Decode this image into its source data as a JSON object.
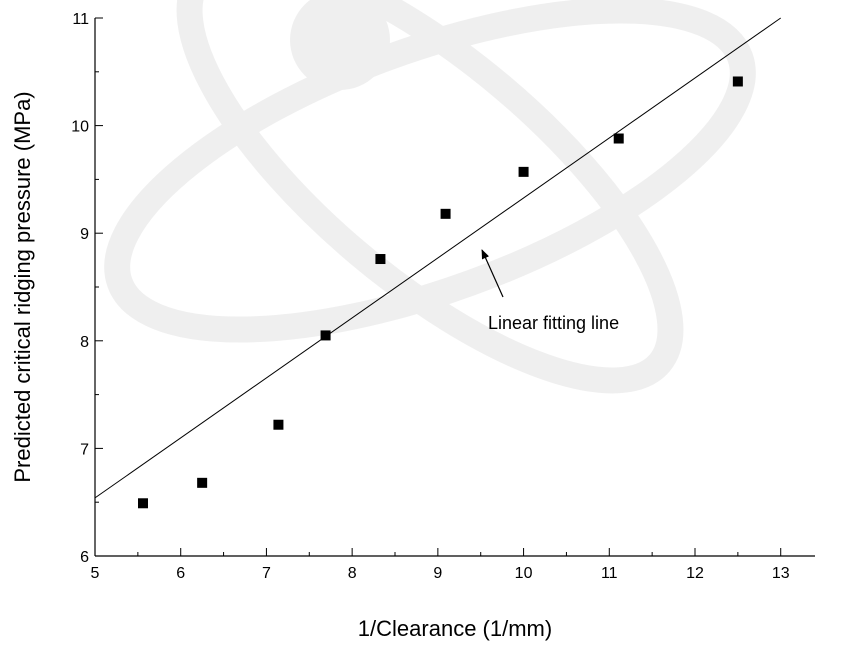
{
  "chart_data": {
    "type": "scatter",
    "x_label": "1/Clearance (1/mm)",
    "y_label": "Predicted critical ridging pressure (MPa)",
    "annotation": "Linear fitting line",
    "x": [
      5.56,
      6.25,
      7.14,
      7.69,
      8.33,
      9.09,
      10,
      11.11,
      12.5
    ],
    "values": [
      6.49,
      6.68,
      7.22,
      8.05,
      8.76,
      9.18,
      9.57,
      9.88,
      10.41
    ],
    "color": "#000000",
    "fit": {
      "x": [
        5,
        13
      ],
      "y": [
        6.54,
        11
      ]
    },
    "xlim": [
      5,
      13.4
    ],
    "xticks": [
      5,
      6,
      7,
      8,
      9,
      10,
      11,
      12,
      13
    ],
    "ylim": [
      6,
      11
    ],
    "yticks": [
      6,
      7,
      8,
      9,
      10,
      11
    ]
  }
}
